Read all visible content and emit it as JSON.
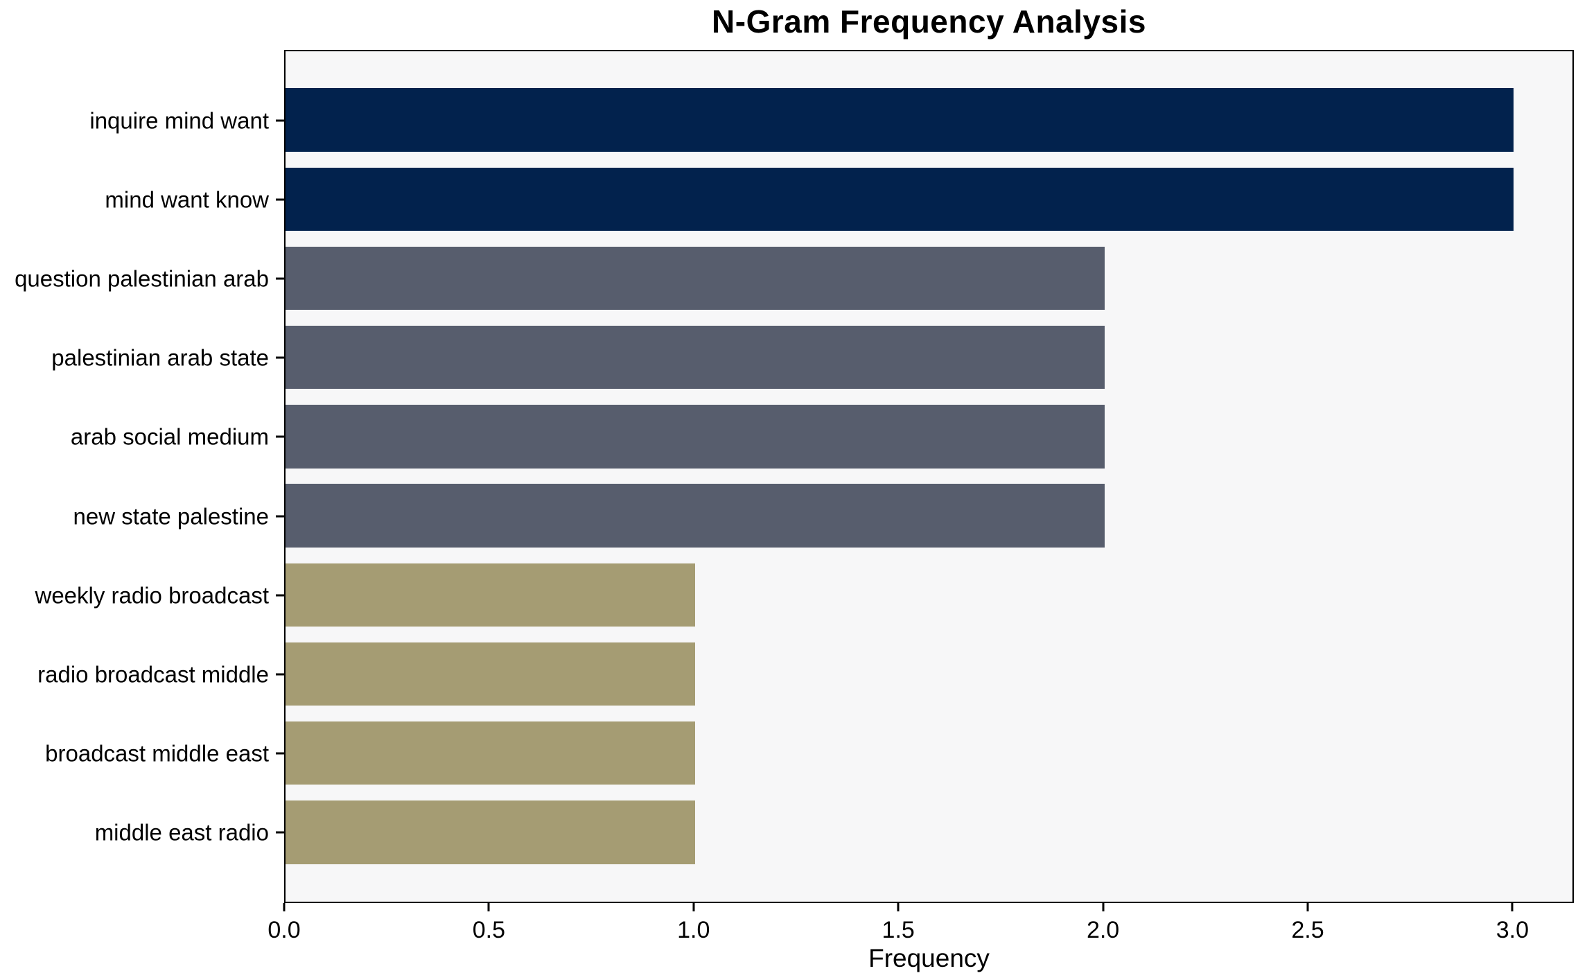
{
  "chart_data": {
    "type": "bar",
    "orientation": "horizontal",
    "title": "N-Gram Frequency Analysis",
    "xlabel": "Frequency",
    "ylabel": "",
    "categories": [
      "inquire mind want",
      "mind want know",
      "question palestinian arab",
      "palestinian arab state",
      "arab social medium",
      "new state palestine",
      "weekly radio broadcast",
      "radio broadcast middle",
      "broadcast middle east",
      "middle east radio"
    ],
    "values": [
      3,
      3,
      2,
      2,
      2,
      2,
      1,
      1,
      1,
      1
    ],
    "bar_colors": [
      "#02224d",
      "#02224d",
      "#575d6d",
      "#575d6d",
      "#575d6d",
      "#575d6d",
      "#a59c73",
      "#a59c73",
      "#a59c73",
      "#a59c73"
    ],
    "x_tick_labels": [
      "0.0",
      "0.5",
      "1.0",
      "1.5",
      "2.0",
      "2.5",
      "3.0"
    ],
    "x_tick_values": [
      0,
      0.5,
      1.0,
      1.5,
      2.0,
      2.5,
      3.0
    ],
    "xlim": [
      0,
      3.15
    ],
    "ylim": [
      -0.89,
      9.89
    ],
    "bar_height_fraction": 0.8,
    "grid": false,
    "legend": false,
    "colors": {
      "plot_background": "#f7f7f8",
      "figure_background": "#ffffff",
      "spine": "#000000",
      "text": "#000000"
    }
  }
}
